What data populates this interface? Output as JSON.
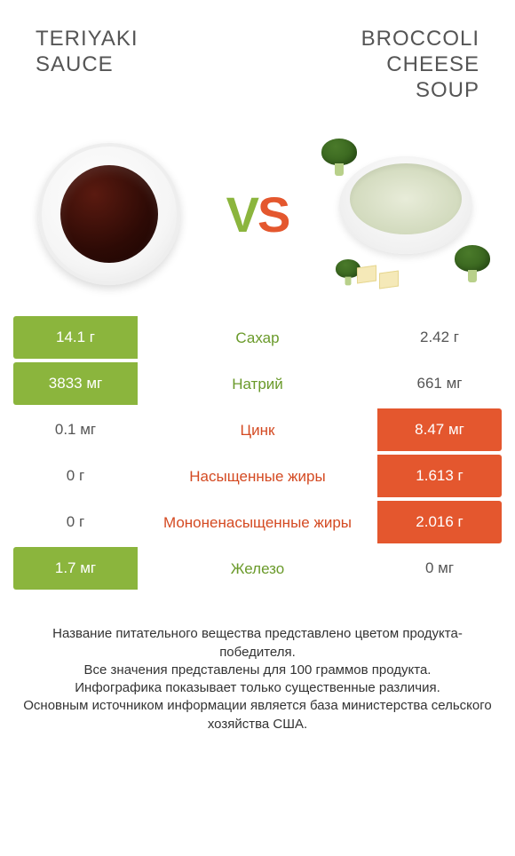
{
  "colors": {
    "green": "#8bb53d",
    "orange": "#e4572e",
    "green_text": "#6a9a2a",
    "orange_text": "#d44a22",
    "bg": "#ffffff"
  },
  "left_product": {
    "title": "TERIYAKI\nSAUCE",
    "color_key": "green"
  },
  "right_product": {
    "title": "BROCCOLI\nCHEESE\nSOUP",
    "color_key": "orange"
  },
  "vs": {
    "v": "V",
    "s": "S"
  },
  "rows": [
    {
      "nutrient": "Сахар",
      "left": "14.1 г",
      "right": "2.42 г",
      "winner": "left"
    },
    {
      "nutrient": "Натрий",
      "left": "3833 мг",
      "right": "661 мг",
      "winner": "left"
    },
    {
      "nutrient": "Цинк",
      "left": "0.1 мг",
      "right": "8.47 мг",
      "winner": "right"
    },
    {
      "nutrient": "Насыщенные жиры",
      "left": "0 г",
      "right": "1.613 г",
      "winner": "right"
    },
    {
      "nutrient": "Мононенасыщенные жиры",
      "left": "0 г",
      "right": "2.016 г",
      "winner": "right"
    },
    {
      "nutrient": "Железо",
      "left": "1.7 мг",
      "right": "0 мг",
      "winner": "left"
    }
  ],
  "footnote": "Название питательного вещества представлено цветом продукта-победителя.\nВсе значения представлены для 100 граммов продукта.\nИнфографика показывает только существенные различия.\nОсновным источником информации является база министерства сельского хозяйства США."
}
